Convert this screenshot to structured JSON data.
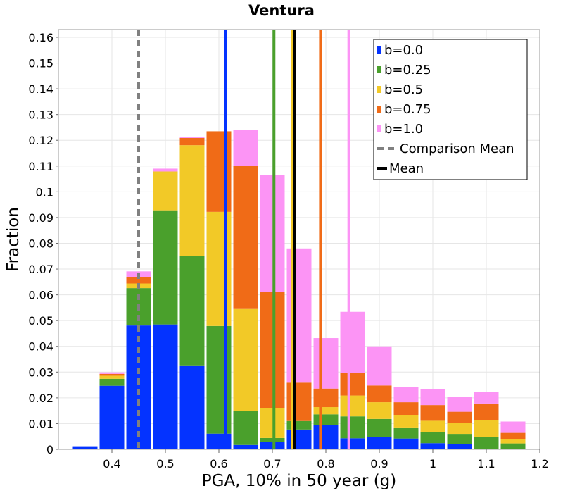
{
  "chart_data": {
    "type": "bar",
    "stacked": true,
    "title": "Ventura",
    "xlabel": "PGA, 10% in 50 year (g)",
    "ylabel": "Fraction",
    "xlim": [
      0.3,
      1.2
    ],
    "ylim": [
      0,
      0.163
    ],
    "grid": true,
    "legend_position": "top-right",
    "bin_width": 0.05,
    "x_ticks": [
      "0.4",
      "0.5",
      "0.6",
      "0.7",
      "0.8",
      "0.9",
      "1",
      "1.1",
      "1.2"
    ],
    "y_ticks": [
      "0",
      "0.01",
      "0.02",
      "0.03",
      "0.04",
      "0.05",
      "0.06",
      "0.07",
      "0.08",
      "0.09",
      "0.1",
      "0.11",
      "0.12",
      "0.13",
      "0.14",
      "0.15",
      "0.16"
    ],
    "bin_centers": [
      0.35,
      0.4,
      0.45,
      0.5,
      0.55,
      0.6,
      0.65,
      0.7,
      0.75,
      0.8,
      0.85,
      0.9,
      0.95,
      1.0,
      1.05,
      1.1,
      1.15,
      1.2
    ],
    "series": [
      {
        "name": "b=0.0",
        "color": "#0433ff",
        "values": [
          0.0012,
          0.0247,
          0.0481,
          0.0485,
          0.0326,
          0.0061,
          0.0017,
          0.0029,
          0.0077,
          0.0094,
          0.0043,
          0.0048,
          0.0042,
          0.0024,
          0.0021,
          0.0,
          0.0,
          0.0
        ]
      },
      {
        "name": "b=0.25",
        "color": "#4aa02c",
        "values": [
          0.0,
          0.0027,
          0.0145,
          0.0443,
          0.0426,
          0.0418,
          0.0131,
          0.0015,
          0.0033,
          0.0042,
          0.0085,
          0.007,
          0.0043,
          0.0044,
          0.0039,
          0.0048,
          0.0023,
          0.0
        ]
      },
      {
        "name": "b=0.5",
        "color": "#f2c927",
        "values": [
          0.0,
          0.0012,
          0.0018,
          0.0151,
          0.0429,
          0.0443,
          0.0397,
          0.0115,
          0.0,
          0.0028,
          0.0081,
          0.0065,
          0.0049,
          0.0043,
          0.0042,
          0.0065,
          0.0018,
          0.0
        ]
      },
      {
        "name": "b=0.75",
        "color": "#f06b17",
        "values": [
          0.0,
          0.0007,
          0.0024,
          0.0,
          0.0028,
          0.0313,
          0.0556,
          0.0452,
          0.0149,
          0.0072,
          0.0088,
          0.0065,
          0.0049,
          0.0061,
          0.0044,
          0.0065,
          0.0023,
          0.0
        ]
      },
      {
        "name": "b=1.0",
        "color": "#fc94f5",
        "values": [
          0.0,
          0.0006,
          0.0023,
          0.0011,
          0.0005,
          0.0,
          0.0138,
          0.0453,
          0.0521,
          0.0196,
          0.0237,
          0.0152,
          0.0058,
          0.0063,
          0.0058,
          0.0045,
          0.0044,
          0.0
        ]
      }
    ],
    "vertical_lines": [
      {
        "series": "b=0.0",
        "x": 0.612,
        "color": "#0433ff",
        "style": "solid"
      },
      {
        "series": "b=0.25",
        "x": 0.703,
        "color": "#4aa02c",
        "style": "solid"
      },
      {
        "series": "b=0.5",
        "x": 0.737,
        "color": "#f2c927",
        "style": "solid"
      },
      {
        "series": "b=0.75",
        "x": 0.79,
        "color": "#f06b17",
        "style": "solid"
      },
      {
        "series": "b=1.0",
        "x": 0.843,
        "color": "#fc94f5",
        "style": "solid"
      },
      {
        "series": "Comparison Mean",
        "x": 0.45,
        "color": "#808080",
        "style": "dashed"
      },
      {
        "series": "Mean",
        "x": 0.742,
        "color": "#000000",
        "style": "solid"
      }
    ],
    "legend": [
      {
        "label": "b=0.0",
        "color": "#0433ff",
        "kind": "box"
      },
      {
        "label": "b=0.25",
        "color": "#4aa02c",
        "kind": "box"
      },
      {
        "label": "b=0.5",
        "color": "#f2c927",
        "kind": "box"
      },
      {
        "label": "b=0.75",
        "color": "#f06b17",
        "kind": "box"
      },
      {
        "label": "b=1.0",
        "color": "#fc94f5",
        "kind": "box"
      },
      {
        "label": "Comparison Mean",
        "color": "#808080",
        "kind": "dash"
      },
      {
        "label": "Mean",
        "color": "#000000",
        "kind": "line"
      }
    ]
  }
}
